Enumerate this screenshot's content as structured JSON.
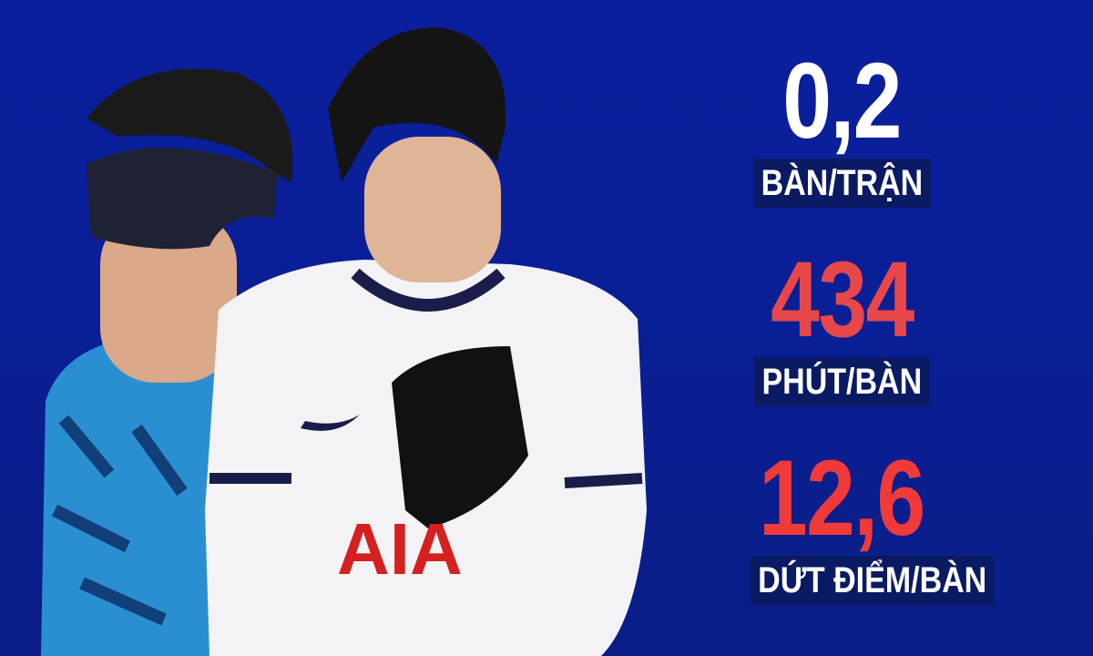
{
  "stats": [
    {
      "value": "0,2",
      "label": "BÀN/TRẬN",
      "color": "#ffffff"
    },
    {
      "value": "434",
      "label": "PHÚT/BÀN",
      "color": "#e8474a"
    },
    {
      "value": "12,6",
      "label": "DỨT ĐIỂM/BÀN",
      "color": "#f03a3a"
    }
  ],
  "colors": {
    "background": "#0b1f9e",
    "label_bg": "#0a1a63"
  }
}
